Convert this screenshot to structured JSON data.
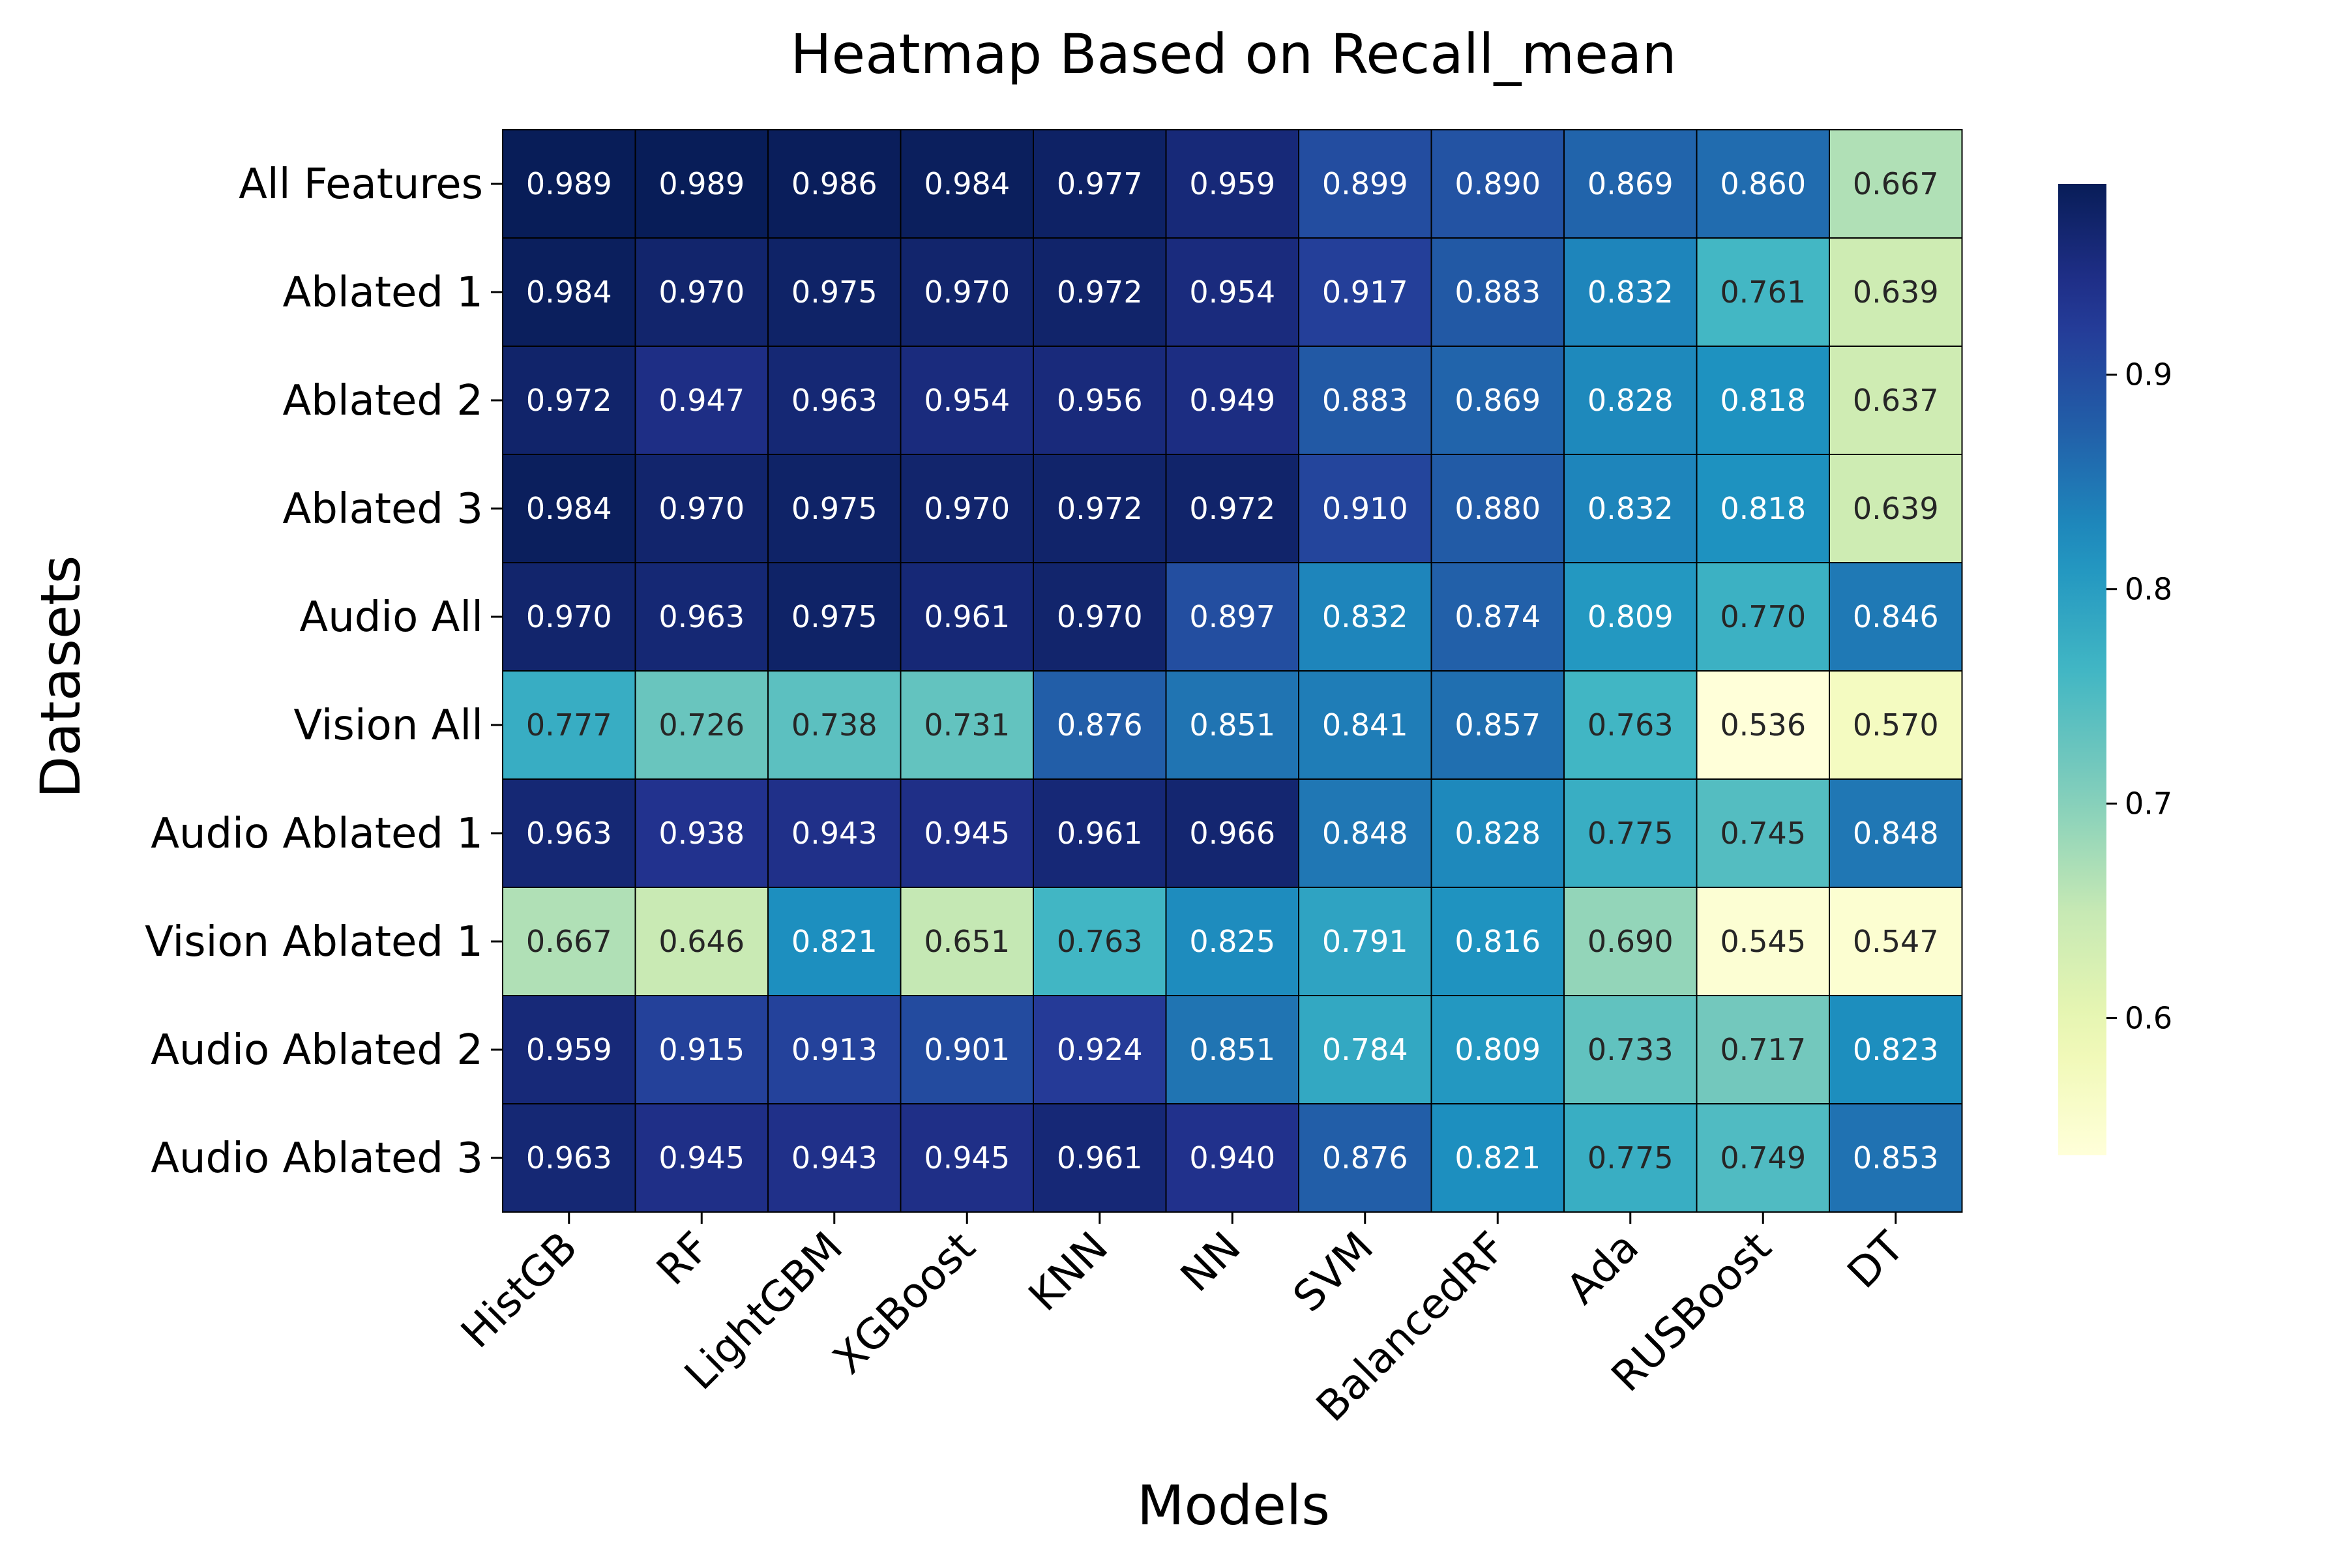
{
  "chart_data": {
    "type": "heatmap",
    "title": "Heatmap Based on Recall_mean",
    "xlabel": "Models",
    "ylabel": "Datasets",
    "columns": [
      "HistGB",
      "RF",
      "LightGBM",
      "XGBoost",
      "KNN",
      "NN",
      "SVM",
      "BalancedRF",
      "Ada",
      "RUSBoost",
      "DT"
    ],
    "rows": [
      "All Features",
      "Ablated 1",
      "Ablated 2",
      "Ablated 3",
      "Audio All",
      "Vision All",
      "Audio Ablated 1",
      "Vision Ablated 1",
      "Audio Ablated 2",
      "Audio Ablated 3"
    ],
    "values": [
      [
        0.989,
        0.989,
        0.986,
        0.984,
        0.977,
        0.959,
        0.899,
        0.89,
        0.869,
        0.86,
        0.667
      ],
      [
        0.984,
        0.97,
        0.975,
        0.97,
        0.972,
        0.954,
        0.917,
        0.883,
        0.832,
        0.761,
        0.639
      ],
      [
        0.972,
        0.947,
        0.963,
        0.954,
        0.956,
        0.949,
        0.883,
        0.869,
        0.828,
        0.818,
        0.637
      ],
      [
        0.984,
        0.97,
        0.975,
        0.97,
        0.972,
        0.972,
        0.91,
        0.88,
        0.832,
        0.818,
        0.639
      ],
      [
        0.97,
        0.963,
        0.975,
        0.961,
        0.97,
        0.897,
        0.832,
        0.874,
        0.809,
        0.77,
        0.846
      ],
      [
        0.777,
        0.726,
        0.738,
        0.731,
        0.876,
        0.851,
        0.841,
        0.857,
        0.763,
        0.536,
        0.57
      ],
      [
        0.963,
        0.938,
        0.943,
        0.945,
        0.961,
        0.966,
        0.848,
        0.828,
        0.775,
        0.745,
        0.848
      ],
      [
        0.667,
        0.646,
        0.821,
        0.651,
        0.763,
        0.825,
        0.791,
        0.816,
        0.69,
        0.545,
        0.547
      ],
      [
        0.959,
        0.915,
        0.913,
        0.901,
        0.924,
        0.851,
        0.784,
        0.809,
        0.733,
        0.717,
        0.823
      ],
      [
        0.963,
        0.945,
        0.943,
        0.945,
        0.961,
        0.94,
        0.876,
        0.821,
        0.775,
        0.749,
        0.853
      ]
    ],
    "value_format": "0.000",
    "colormap": "YlGnBu",
    "color_range": [
      0.536,
      0.989
    ],
    "colorbar_ticks": [
      0.6,
      0.7,
      0.8,
      0.9
    ],
    "cell_border_color": "#000000",
    "grid": false,
    "legend": "colorbar-right"
  }
}
